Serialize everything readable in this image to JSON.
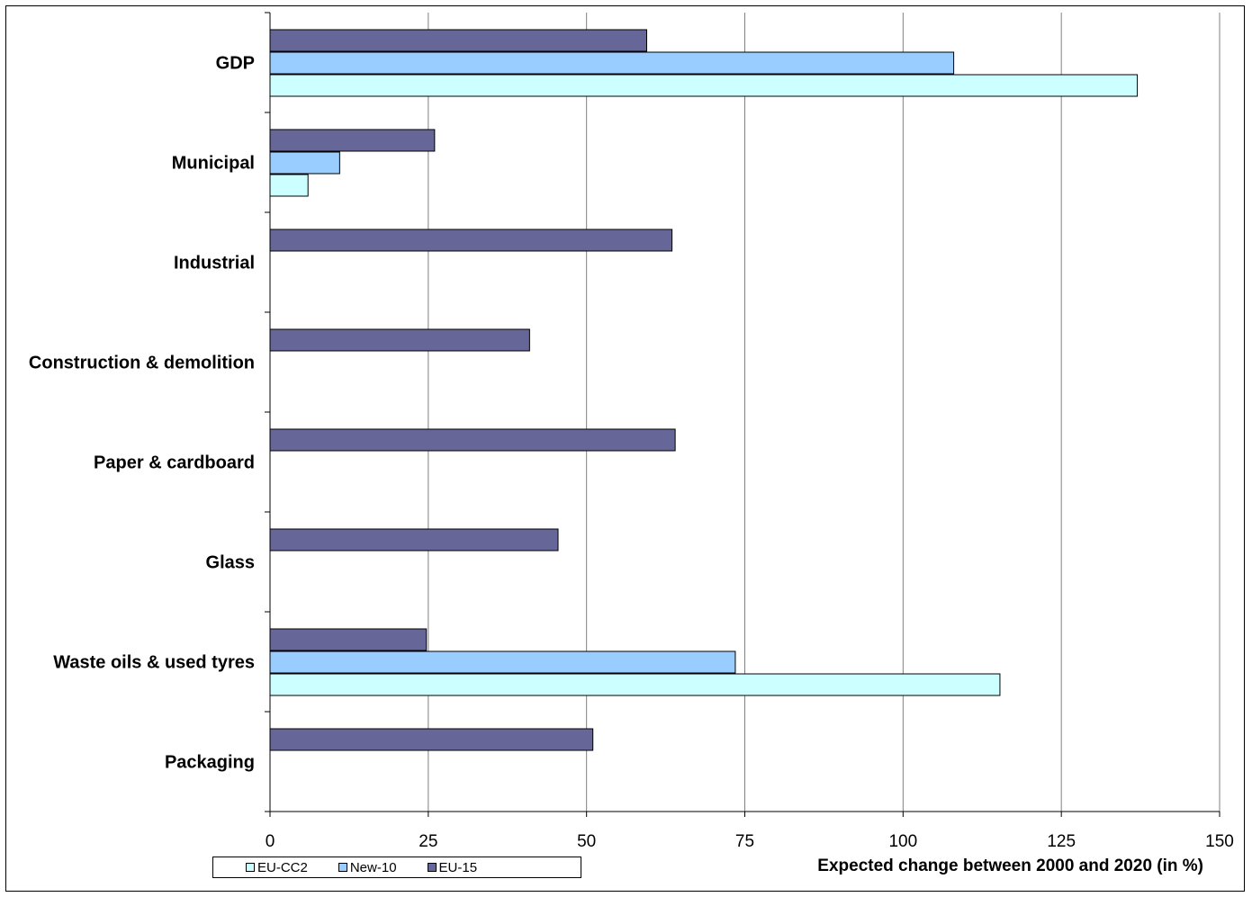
{
  "chart_data": {
    "type": "bar",
    "orientation": "horizontal",
    "categories": [
      "GDP",
      "Municipal",
      "Industrial",
      "Construction & demolition",
      "Paper & cardboard",
      "Glass",
      "Waste oils & used tyres",
      "Packaging"
    ],
    "series": [
      {
        "name": "EU-15",
        "color": "#666699",
        "values": [
          59.5,
          26,
          63.5,
          41,
          64,
          45.5,
          24.7,
          51
        ]
      },
      {
        "name": "New-10",
        "color": "#99ccff",
        "values": [
          108,
          11,
          null,
          null,
          null,
          null,
          73.5,
          null
        ]
      },
      {
        "name": "EU-CC2",
        "color": "#ccffff",
        "values": [
          137,
          6,
          null,
          null,
          null,
          null,
          115.3,
          null
        ]
      }
    ],
    "xlabel": "Expected change between 2000 and 2020 (in %)",
    "xlim": [
      0,
      150
    ],
    "xticks": [
      0,
      25,
      50,
      75,
      100,
      125,
      150
    ],
    "grid": true,
    "legend_position": "bottom-left",
    "legend_order": [
      "EU-CC2",
      "New-10",
      "EU-15"
    ]
  }
}
